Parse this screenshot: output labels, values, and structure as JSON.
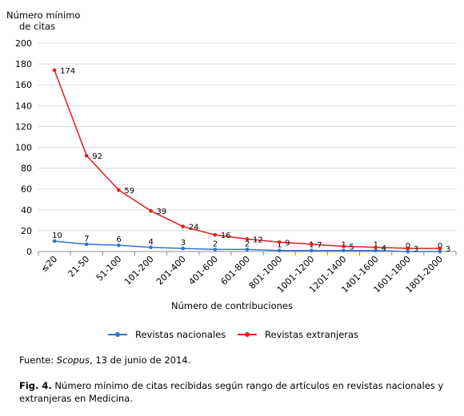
{
  "chart_data": {
    "type": "line",
    "categories": [
      "≤20",
      "21-50",
      "51-100",
      "101-200",
      "201-400",
      "401-600",
      "601-800",
      "801-1000",
      "1001-1200",
      "1201-1400",
      "1401-1600",
      "1601-1800",
      "1801-2000"
    ],
    "series": [
      {
        "name": "Revistas nacionales",
        "values": [
          10,
          7,
          6,
          4,
          3,
          2,
          2,
          1,
          1,
          1,
          1,
          0,
          0
        ],
        "color": "#2e75d0",
        "labels": [
          "10",
          "7",
          "6",
          "4",
          "3",
          "2",
          "2",
          "1",
          "1",
          "1",
          "1",
          "0",
          "0"
        ]
      },
      {
        "name": "Revistas extranjeras",
        "values": [
          174,
          92,
          59,
          39,
          24,
          16,
          12,
          9,
          7,
          5,
          4,
          3,
          3
        ],
        "color": "#e31c1c",
        "labels": [
          "174",
          "92",
          "59",
          "39",
          "24",
          "16",
          "12",
          "9",
          "7",
          "5",
          "4",
          "3",
          "3"
        ]
      }
    ],
    "ylabel_line1": "Número mínimo",
    "ylabel_line2": "de citas",
    "xlabel": "Número de contribuciones",
    "ylim": [
      0,
      200
    ],
    "yticks": [
      0,
      20,
      40,
      60,
      80,
      100,
      120,
      140,
      160,
      180,
      200
    ],
    "grid": true,
    "legend_position": "bottom"
  },
  "source": {
    "prefix": "Fuente: ",
    "italic": "Scopus",
    "suffix": ", 13 de junio de 2014."
  },
  "caption": {
    "label": "Fig. 4.",
    "text": " Número mínimo de citas recibidas según rango de artículos en revistas nacionales y extranjeras en Medicina."
  }
}
